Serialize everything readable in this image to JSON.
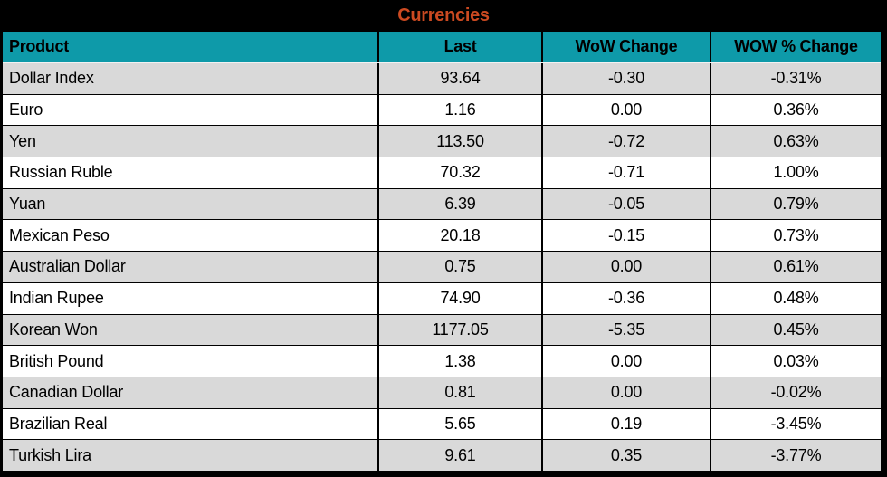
{
  "chart_data": {
    "type": "table",
    "title": "Currencies",
    "columns": [
      "Product",
      "Last",
      "WoW Change",
      "WOW % Change"
    ],
    "rows": [
      [
        "Dollar Index",
        "93.64",
        "-0.30",
        "-0.31%"
      ],
      [
        "Euro",
        "1.16",
        "0.00",
        "0.36%"
      ],
      [
        "Yen",
        "113.50",
        "-0.72",
        "0.63%"
      ],
      [
        "Russian Ruble",
        "70.32",
        "-0.71",
        "1.00%"
      ],
      [
        "Yuan",
        "6.39",
        "-0.05",
        "0.79%"
      ],
      [
        "Mexican Peso",
        "20.18",
        "-0.15",
        "0.73%"
      ],
      [
        "Australian Dollar",
        "0.75",
        "0.00",
        "0.61%"
      ],
      [
        "Indian Rupee",
        "74.90",
        "-0.36",
        "0.48%"
      ],
      [
        "Korean Won",
        "1177.05",
        "-5.35",
        "0.45%"
      ],
      [
        "British Pound",
        "1.38",
        "0.00",
        "0.03%"
      ],
      [
        "Canadian Dollar",
        "0.81",
        "0.00",
        "-0.02%"
      ],
      [
        "Brazilian Real",
        "5.65",
        "0.19",
        "-3.45%"
      ],
      [
        "Turkish Lira",
        "9.61",
        "0.35",
        "-3.77%"
      ]
    ]
  },
  "colors": {
    "title_text": "#CC4A21",
    "header_bg": "#0E9AA9",
    "header_text": "#000000",
    "row_bg": "#FFFFFF",
    "row_alt_bg": "#D9D9D9",
    "cell_text": "#000000",
    "frame_bg": "#000000"
  }
}
